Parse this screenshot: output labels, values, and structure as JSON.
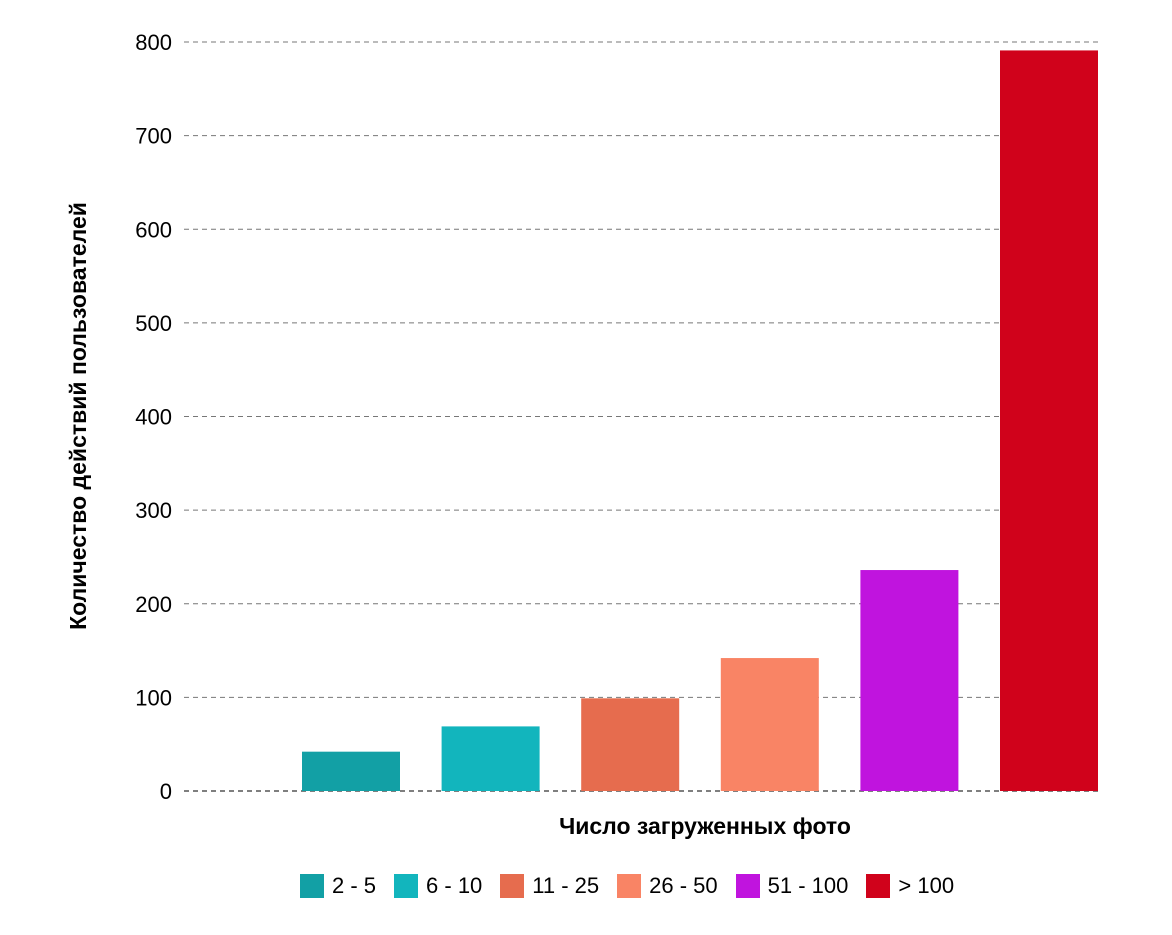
{
  "chart_data": {
    "type": "bar",
    "title": "",
    "xlabel": "Число загруженных фото",
    "ylabel": "Количество действий пользователей",
    "ylim": [
      0,
      800
    ],
    "yticks": [
      0,
      100,
      200,
      300,
      400,
      500,
      600,
      700,
      800
    ],
    "grid": true,
    "legend_position": "bottom",
    "series": [
      {
        "name": "2 - 5",
        "value": 42,
        "color": "#12a0a5"
      },
      {
        "name": "6 - 10",
        "value": 69,
        "color": "#12b5bd"
      },
      {
        "name": "11 - 25",
        "value": 99,
        "color": "#e66c4e"
      },
      {
        "name": "26 - 50",
        "value": 142,
        "color": "#f98465"
      },
      {
        "name": "51 - 100",
        "value": 236,
        "color": "#c014de"
      },
      {
        "name": "> 100",
        "value": 791,
        "color": "#d0021b"
      }
    ]
  }
}
